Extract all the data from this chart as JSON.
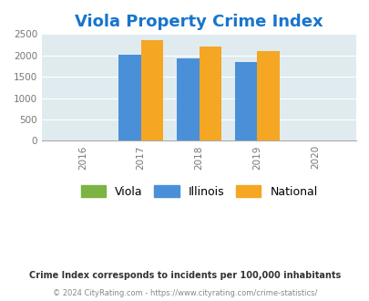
{
  "title": "Viola Property Crime Index",
  "title_color": "#1874CD",
  "title_fontsize": 13,
  "years": [
    2016,
    2017,
    2018,
    2019,
    2020
  ],
  "bar_years": [
    2017,
    2018,
    2019
  ],
  "viola_values": [
    0,
    0,
    0
  ],
  "illinois_values": [
    2010,
    1940,
    1840
  ],
  "national_values": [
    2360,
    2210,
    2100
  ],
  "viola_color": "#7CB342",
  "illinois_color": "#4A90D9",
  "national_color": "#F5A623",
  "bg_color": "#E0EBF0",
  "ylim": [
    0,
    2500
  ],
  "yticks": [
    0,
    500,
    1000,
    1500,
    2000,
    2500
  ],
  "bar_width": 0.38,
  "legend_labels": [
    "Viola",
    "Illinois",
    "National"
  ],
  "footnote1": "Crime Index corresponds to incidents per 100,000 inhabitants",
  "footnote2": "© 2024 CityRating.com - https://www.cityrating.com/crime-statistics/",
  "footnote1_color": "#333333",
  "footnote2_color": "#888888",
  "xlim": [
    2015.3,
    2020.7
  ]
}
